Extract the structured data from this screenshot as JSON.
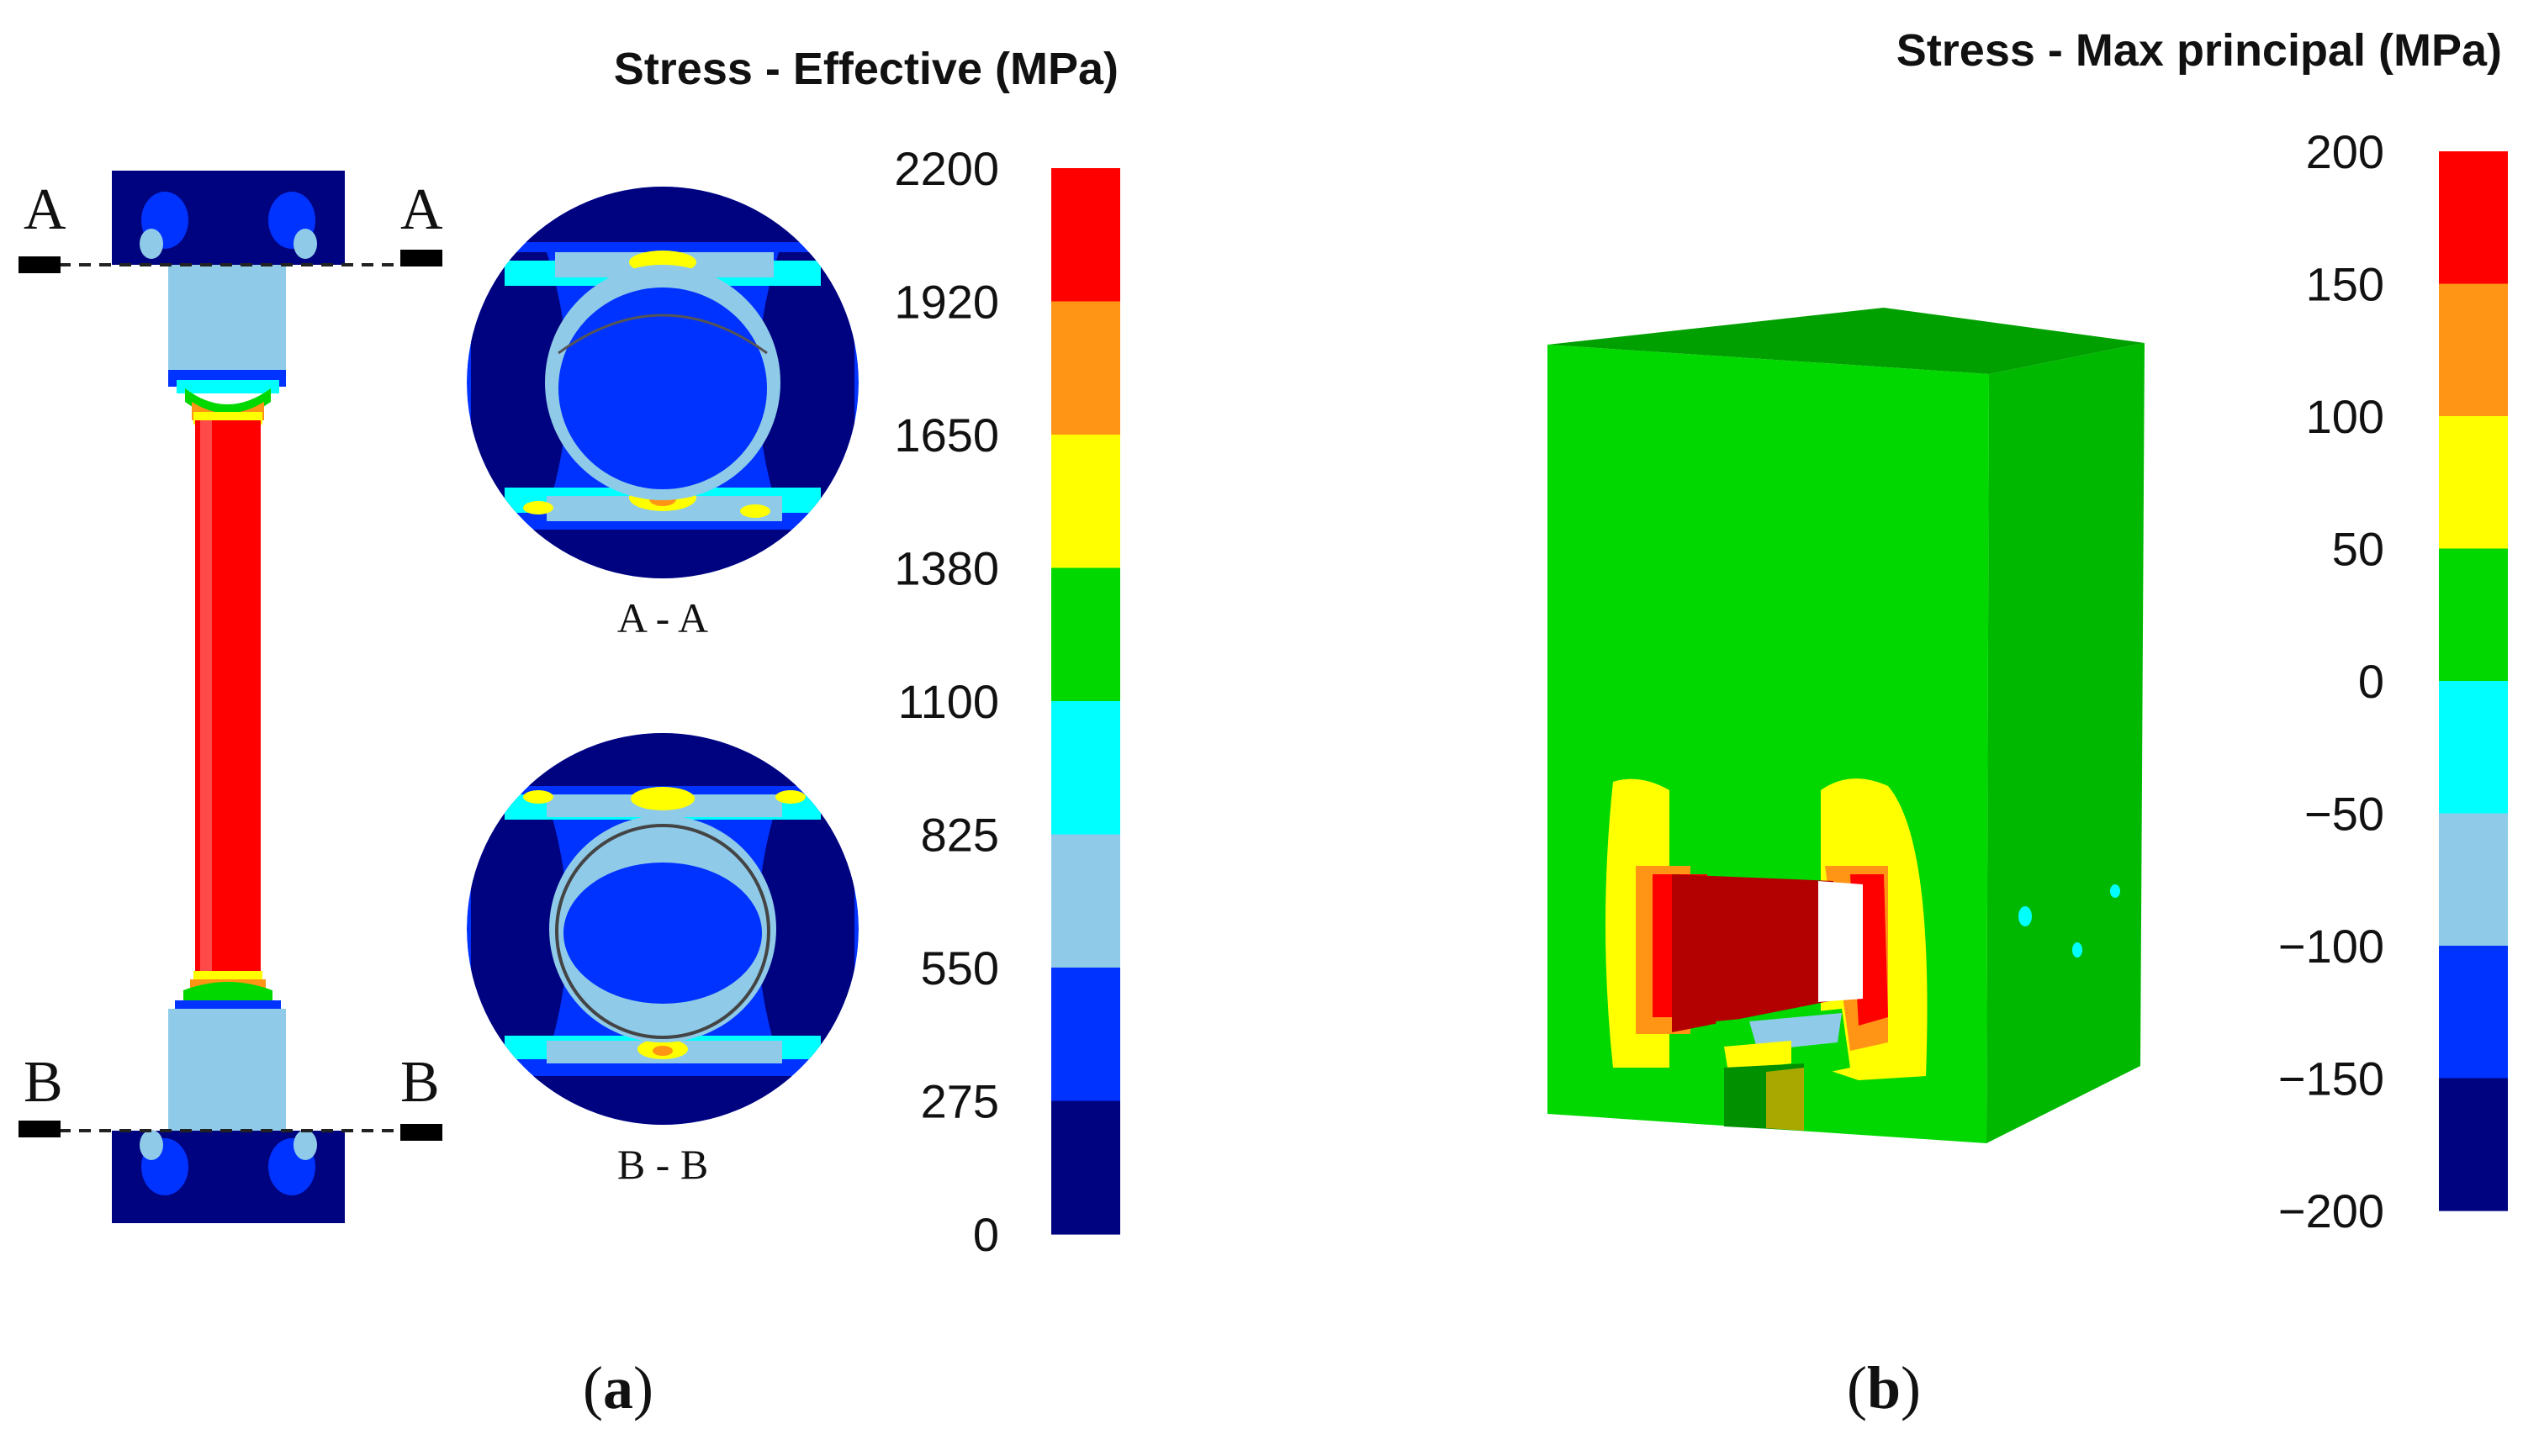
{
  "panel_a": {
    "label_open": "(",
    "label_letter": "a",
    "label_close": ")",
    "colorbar": {
      "title": "Stress - Effective (MPa)",
      "ticks": [
        "2200",
        "1920",
        "1650",
        "1380",
        "1100",
        "825",
        "550",
        "275",
        "0"
      ],
      "colors": [
        "#ff0000",
        "#ff9415",
        "#ffff00",
        "#00d800",
        "#00ffff",
        "#8fcae8",
        "#0033ff",
        "#00037f"
      ]
    },
    "section_a": {
      "left_letter": "A",
      "right_letter": "A",
      "caption": "A - A"
    },
    "section_b": {
      "left_letter": "B",
      "right_letter": "B",
      "caption": "B - B"
    }
  },
  "panel_b": {
    "label_open": "(",
    "label_letter": "b",
    "label_close": ")",
    "colorbar": {
      "title": "Stress - Max principal (MPa)",
      "ticks": [
        "200",
        "150",
        "100",
        "50",
        "0",
        "−50",
        "−100",
        "−150",
        "−200"
      ],
      "colors": [
        "#ff0000",
        "#ff9415",
        "#ffff00",
        "#00d800",
        "#00ffff",
        "#8fcae8",
        "#0033ff",
        "#00037f"
      ]
    }
  }
}
